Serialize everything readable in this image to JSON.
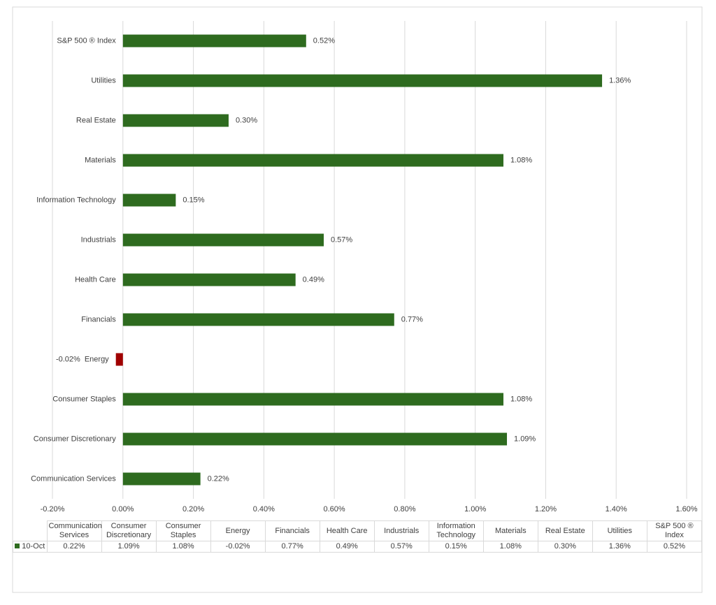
{
  "chart_data": {
    "type": "hbar",
    "categories": [
      "Communication Services",
      "Consumer Discretionary",
      "Consumer Staples",
      "Energy",
      "Financials",
      "Health Care",
      "Industrials",
      "Information Technology",
      "Materials",
      "Real Estate",
      "Utilities",
      "S&P 500 ® Index"
    ],
    "series": [
      {
        "name": "10-Oct",
        "color": "#2e6b1f",
        "values": [
          0.22,
          1.09,
          1.08,
          -0.02,
          0.77,
          0.49,
          0.57,
          0.15,
          1.08,
          0.3,
          1.36,
          0.52
        ],
        "value_labels": [
          "0.22%",
          "1.09%",
          "1.08%",
          "-0.02%",
          "0.77%",
          "0.49%",
          "0.57%",
          "0.15%",
          "1.08%",
          "0.30%",
          "1.36%",
          "0.52%"
        ]
      }
    ],
    "negative_color": "#a00000",
    "xlim": [
      -0.2,
      1.6
    ],
    "xticks": [
      {
        "value": -0.2,
        "label": "-0.20%"
      },
      {
        "value": 0,
        "label": "0.00%"
      },
      {
        "value": 0.2,
        "label": "0.20%"
      },
      {
        "value": 0.4,
        "label": "0.40%"
      },
      {
        "value": 0.6,
        "label": "0.60%"
      },
      {
        "value": 0.8,
        "label": "0.80%"
      },
      {
        "value": 1.0,
        "label": "1.00%"
      },
      {
        "value": 1.2,
        "label": "1.20%"
      },
      {
        "value": 1.4,
        "label": "1.40%"
      },
      {
        "value": 1.6,
        "label": "1.60%"
      }
    ],
    "grid": true,
    "data_table": true
  }
}
